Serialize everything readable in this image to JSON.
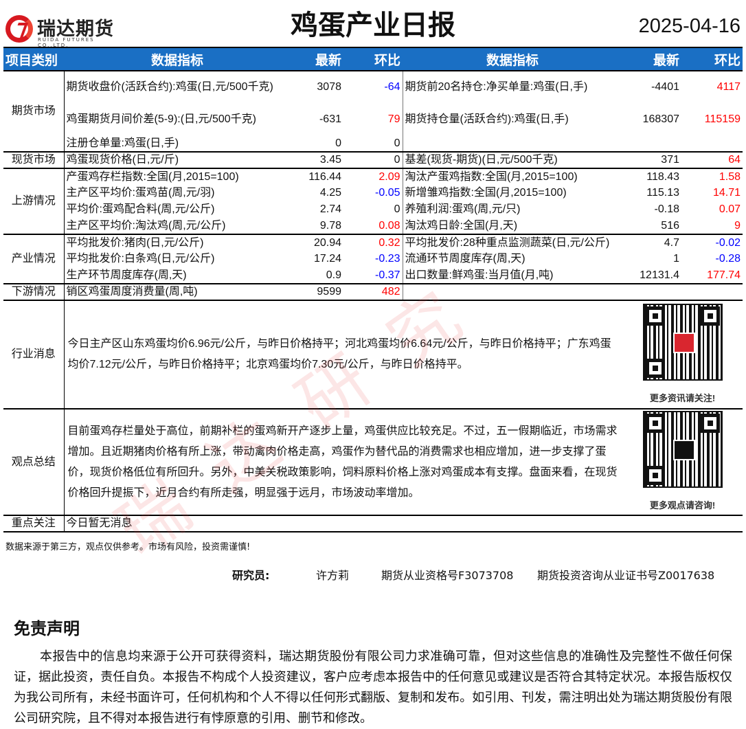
{
  "header": {
    "logo_cn": "瑞达期货",
    "logo_en": "RUIDA FUTURES CO.,LTD.",
    "title": "鸡蛋产业日报",
    "date": "2025-04-16"
  },
  "colors": {
    "header_bg": "#1a6fc4",
    "negative": "#0000ff",
    "positive": "#ff0000",
    "watermark": "#e63c3c"
  },
  "table": {
    "headers": {
      "category": "项目类别",
      "indicator": "数据指标",
      "latest": "最新",
      "change": "环比"
    },
    "sections": [
      {
        "category": "期货市场",
        "rows": [
          {
            "l": {
              "name": "期货收盘价(活跃合约):鸡蛋(日,元/500千克)",
              "latest": "3078",
              "change": "-64"
            },
            "r": {
              "name": "期货前20名持仓:净买单量:鸡蛋(日,手)",
              "latest": "-4401",
              "change": "4117"
            }
          },
          {
            "l": {
              "name": "鸡蛋期货月间价差(5-9):(日,元/500千克)",
              "latest": "-631",
              "change": "79"
            },
            "r": {
              "name": "期货持仓量(活跃合约):鸡蛋(日,手)",
              "latest": "168307",
              "change": "115159"
            }
          },
          {
            "l": {
              "name": "注册仓单量:鸡蛋(日,手)",
              "latest": "0",
              "change": "0"
            },
            "r": {
              "name": "",
              "latest": "",
              "change": ""
            }
          }
        ]
      },
      {
        "category": "现货市场",
        "rows": [
          {
            "l": {
              "name": "鸡蛋现货价格(日,元/斤)",
              "latest": "3.45",
              "change": "0"
            },
            "r": {
              "name": "基差(现货-期货)(日,元/500千克)",
              "latest": "371",
              "change": "64"
            }
          }
        ]
      },
      {
        "category": "上游情况",
        "rows": [
          {
            "l": {
              "name": "产蛋鸡存栏指数:全国(月,2015=100)",
              "latest": "116.44",
              "change": "2.09"
            },
            "r": {
              "name": "淘汰产蛋鸡指数:全国(月,2015=100)",
              "latest": "118.43",
              "change": "1.58"
            }
          },
          {
            "l": {
              "name": "主产区平均价:蛋鸡苗(周,元/羽)",
              "latest": "4.25",
              "change": "-0.05"
            },
            "r": {
              "name": "新增雏鸡指数:全国(月,2015=100)",
              "latest": "115.13",
              "change": "14.71"
            }
          },
          {
            "l": {
              "name": "平均价:蛋鸡配合料(周,元/公斤)",
              "latest": "2.74",
              "change": "0"
            },
            "r": {
              "name": "养殖利润:蛋鸡(周,元/只)",
              "latest": "-0.18",
              "change": "0.07"
            }
          },
          {
            "l": {
              "name": "主产区平均价:淘汰鸡(周,元/公斤)",
              "latest": "9.78",
              "change": "0.08"
            },
            "r": {
              "name": "淘汰鸡日龄:全国(月,天)",
              "latest": "516",
              "change": "9"
            }
          }
        ]
      },
      {
        "category": "产业情况",
        "rows": [
          {
            "l": {
              "name": "平均批发价:猪肉(日,元/公斤)",
              "latest": "20.94",
              "change": "0.32"
            },
            "r": {
              "name": "平均批发价:28种重点监测蔬菜(日,元/公斤)",
              "latest": "4.7",
              "change": "-0.02"
            }
          },
          {
            "l": {
              "name": "平均批发价:白条鸡(日,元/公斤)",
              "latest": "17.24",
              "change": "-0.23"
            },
            "r": {
              "name": "流通环节周度库存(周,天)",
              "latest": "1",
              "change": "-0.28"
            }
          },
          {
            "l": {
              "name": "生产环节周度库存(周,天)",
              "latest": "0.9",
              "change": "-0.37"
            },
            "r": {
              "name": "出口数量:鲜鸡蛋:当月值(月,吨)",
              "latest": "12131.4",
              "change": "177.74"
            }
          }
        ]
      },
      {
        "category": "下游情况",
        "rows": [
          {
            "l": {
              "name": "销区鸡蛋周度消费量(周,吨)",
              "latest": "9599",
              "change": "482"
            },
            "r": {
              "name": "",
              "latest": "",
              "change": ""
            }
          }
        ]
      }
    ],
    "news": {
      "category": "行业消息",
      "text": "今日主产区山东鸡蛋均价6.96元/公斤，与昨日价格持平；河北鸡蛋均价6.64元/公斤，与昨日价格持平；广东鸡蛋均价7.12元/公斤，与昨日价格持平；北京鸡蛋均价7.30元/公斤，与昨日价格持平。",
      "qr_caption": "更多资讯请关注!"
    },
    "view": {
      "category": "观点总结",
      "text": "目前蛋鸡存栏量处于高位，前期补栏的蛋鸡新开产逐步上量，鸡蛋供应比较充足。不过，五一假期临近，市场需求增加。且近期猪肉价格有所上涨，带动禽肉价格走高，鸡蛋作为替代品的消费需求也相应增加，进一步支撑了蛋价，现货价格低位有所回升。另外，中美关税政策影响，饲料原料价格上涨对鸡蛋成本有支撑。盘面来看，在现货价格回升提振下，近月合约有所走强，明显强于远月，市场波动率增加。",
      "qr_caption": "更多观点请咨询!"
    },
    "focus": {
      "category": "重点关注",
      "text": "今日暂无消息"
    }
  },
  "watermark": "瑞达研究",
  "footer": {
    "note": "数据来源于第三方，观点仅供参考。市场有风险，投资需谨慎!",
    "researcher_label": "研究员:",
    "researcher_name": "许方莉",
    "license1": "期货从业资格号F3073708",
    "license2": "期货投资咨询从业证书号Z0017638"
  },
  "disclaimer": {
    "title": "免责声明",
    "text": "本报告中的信息均来源于公开可获得资料，瑞达期货股份有限公司力求准确可靠，但对这些信息的准确性及完整性不做任何保证，据此投资，责任自负。本报告不构成个人投资建议，客户应考虑本报告中的任何意见或建议是否符合其特定状况。本报告版权仅为我公司所有，未经书面许可，任何机构和个人不得以任何形式翻版、复制和发布。如引用、刊发，需注明出处为瑞达期货股份有限公司研究院，且不得对本报告进行有悖原意的引用、删节和修改。"
  }
}
